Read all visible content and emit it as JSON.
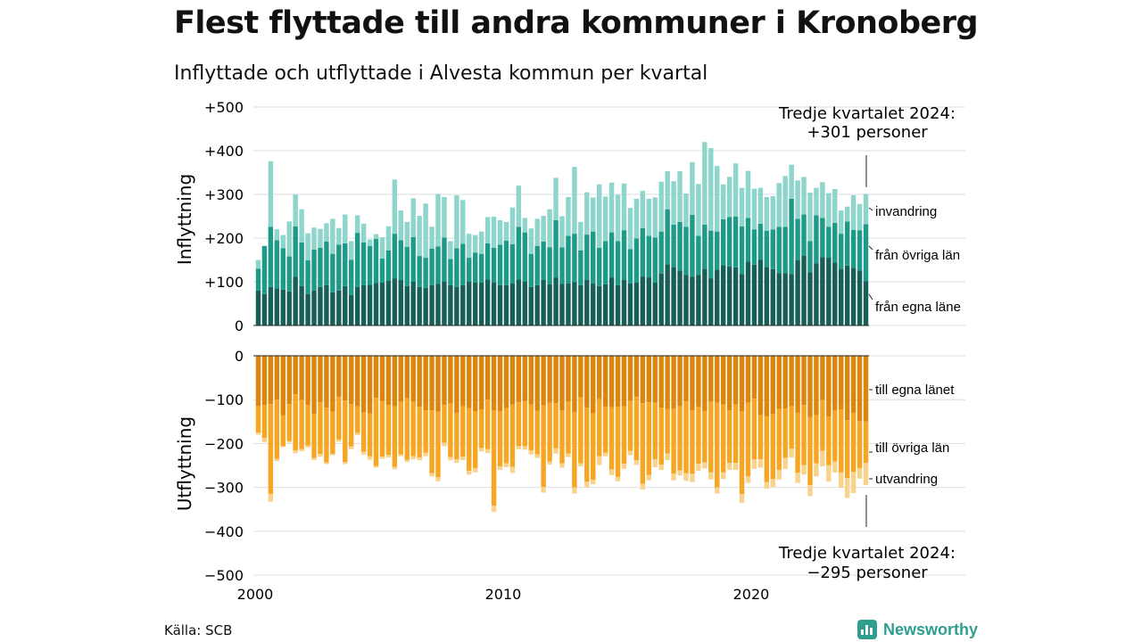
{
  "title": "Flest flyttade till andra kommuner i Kronoberg",
  "subtitle": "Inflyttade och utflyttade i Alvesta kommun per kvartal",
  "source": "Källa: SCB",
  "brand": "Newsworthy",
  "colors": {
    "in_egna": "#175f57",
    "in_ovriga": "#1e9a89",
    "in_invandring": "#8ed5cc",
    "out_egna": "#dd860d",
    "out_ovriga": "#f7a623",
    "out_utvandring": "#f8d38d",
    "grid": "#dddddd",
    "brand": "#2f9e8e"
  },
  "chart_data": [
    {
      "type": "bar",
      "stacked": true,
      "ylabel": "Inflyttning",
      "ylim": [
        0,
        500
      ],
      "yticks": [
        "0",
        "+100",
        "+200",
        "+300",
        "+400",
        "+500"
      ],
      "xticks": [
        "2000",
        "2010",
        "2020"
      ],
      "grid": true,
      "x_start": "2000 Q1",
      "x_end": "2024 Q3",
      "annotation": {
        "line1": "Tredje kvartalet 2024:",
        "line2": "+301 personer"
      },
      "series": [
        {
          "name": "från egna läne",
          "color": "#175f57",
          "values": [
            80,
            72,
            88,
            85,
            82,
            78,
            112,
            90,
            72,
            80,
            88,
            92,
            76,
            80,
            90,
            70,
            88,
            92,
            93,
            97,
            98,
            102,
            108,
            104,
            90,
            100,
            88,
            86,
            92,
            95,
            100,
            92,
            88,
            92,
            100,
            98,
            98,
            105,
            98,
            92,
            92,
            96,
            105,
            100,
            88,
            92,
            104,
            94,
            110,
            95,
            96,
            99,
            92,
            104,
            96,
            90,
            94,
            110,
            92,
            104,
            96,
            98,
            112,
            110,
            98,
            119,
            140,
            134,
            126,
            116,
            112,
            116,
            130,
            108,
            128,
            138,
            135,
            133,
            118,
            146,
            139,
            150,
            134,
            129,
            120,
            120,
            118,
            149,
            160,
            122,
            142,
            156,
            155,
            144,
            130,
            137,
            132,
            126,
            101
          ]
        },
        {
          "name": "från övriga län",
          "color": "#1e9a89",
          "values": [
            50,
            110,
            138,
            110,
            95,
            80,
            115,
            100,
            77,
            94,
            90,
            100,
            88,
            105,
            98,
            80,
            124,
            98,
            89,
            101,
            55,
            70,
            102,
            91,
            90,
            102,
            71,
            69,
            84,
            86,
            101,
            60,
            89,
            95,
            55,
            69,
            66,
            83,
            80,
            93,
            102,
            90,
            121,
            113,
            76,
            90,
            88,
            85,
            131,
            84,
            109,
            111,
            80,
            104,
            119,
            88,
            99,
            103,
            101,
            114,
            79,
            101,
            111,
            95,
            103,
            96,
            126,
            97,
            111,
            110,
            141,
            89,
            101,
            109,
            87,
            105,
            113,
            116,
            109,
            100,
            81,
            83,
            83,
            91,
            106,
            106,
            172,
            95,
            94,
            71,
            110,
            90,
            71,
            91,
            80,
            101,
            87,
            92,
            131
          ]
        },
        {
          "name": "invandring",
          "color": "#8ed5cc",
          "values": [
            20,
            0,
            150,
            25,
            30,
            80,
            73,
            76,
            62,
            50,
            43,
            42,
            80,
            38,
            66,
            43,
            40,
            43,
            15,
            11,
            49,
            55,
            124,
            68,
            57,
            89,
            92,
            124,
            50,
            120,
            93,
            41,
            121,
            100,
            55,
            40,
            51,
            60,
            71,
            56,
            43,
            84,
            94,
            33,
            58,
            62,
            59,
            87,
            97,
            71,
            89,
            153,
            65,
            97,
            78,
            145,
            102,
            114,
            106,
            107,
            94,
            91,
            85,
            85,
            92,
            114,
            87,
            99,
            116,
            76,
            121,
            119,
            189,
            189,
            150,
            80,
            92,
            122,
            88,
            108,
            93,
            82,
            77,
            76,
            100,
            116,
            78,
            88,
            86,
            111,
            63,
            82,
            77,
            77,
            53,
            34,
            79,
            60,
            69
          ]
        }
      ]
    },
    {
      "type": "bar",
      "stacked": true,
      "ylabel": "Utflyttning",
      "ylim": [
        -500,
        0
      ],
      "yticks": [
        "0",
        "−100",
        "−200",
        "−300",
        "−400",
        "−500"
      ],
      "xticks": [
        "2000",
        "2010",
        "2020"
      ],
      "grid": true,
      "x_start": "2000 Q1",
      "x_end": "2024 Q3",
      "annotation": {
        "line1": "Tredje kvartalet 2024:",
        "line2": "−295 personer"
      },
      "series": [
        {
          "name": "till egna länet",
          "color": "#dd860d",
          "values": [
            -115,
            -112,
            -110,
            -100,
            -136,
            -110,
            -88,
            -101,
            -112,
            -132,
            -106,
            -118,
            -127,
            -94,
            -102,
            -110,
            -115,
            -128,
            -131,
            -96,
            -104,
            -112,
            -115,
            -105,
            -97,
            -105,
            -116,
            -124,
            -124,
            -127,
            -112,
            -109,
            -130,
            -115,
            -119,
            -126,
            -122,
            -100,
            -124,
            -126,
            -119,
            -111,
            -106,
            -104,
            -111,
            -125,
            -113,
            -107,
            -108,
            -124,
            -105,
            -128,
            -95,
            -118,
            -131,
            -99,
            -116,
            -117,
            -116,
            -115,
            -103,
            -94,
            -108,
            -106,
            -107,
            -118,
            -121,
            -120,
            -115,
            -104,
            -124,
            -117,
            -126,
            -105,
            -107,
            -111,
            -124,
            -111,
            -126,
            -107,
            -98,
            -135,
            -138,
            -133,
            -121,
            -120,
            -115,
            -130,
            -112,
            -140,
            -135,
            -101,
            -139,
            -124,
            -122,
            -147,
            -130,
            -149,
            -150
          ]
        },
        {
          "name": "till övriga län",
          "color": "#f7a623",
          "values": [
            -60,
            -75,
            -205,
            -135,
            -70,
            -84,
            -128,
            -112,
            -93,
            -101,
            -118,
            -125,
            -97,
            -97,
            -140,
            -97,
            -61,
            -91,
            -98,
            -155,
            -126,
            -114,
            -138,
            -120,
            -140,
            -124,
            -116,
            -97,
            -144,
            -150,
            -86,
            -122,
            -106,
            -115,
            -143,
            -130,
            -88,
            -113,
            -218,
            -126,
            -126,
            -142,
            -100,
            -102,
            -105,
            -100,
            -186,
            -134,
            -103,
            -121,
            -118,
            -172,
            -150,
            -169,
            -152,
            -130,
            -105,
            -142,
            -160,
            -131,
            -114,
            -144,
            -184,
            -166,
            -129,
            -130,
            -102,
            -149,
            -146,
            -164,
            -145,
            -129,
            -117,
            -161,
            -193,
            -155,
            -120,
            -133,
            -189,
            -168,
            -138,
            -101,
            -150,
            -148,
            -139,
            -113,
            -97,
            -137,
            -137,
            -155,
            -110,
            -116,
            -110,
            -117,
            -144,
            -132,
            -135,
            -107,
            -94
          ]
        },
        {
          "name": "utvandring",
          "color": "#f8d38d",
          "values": [
            -5,
            -10,
            -18,
            -5,
            -2,
            -4,
            -6,
            -5,
            -4,
            -5,
            -6,
            -4,
            -3,
            -5,
            -5,
            -6,
            -5,
            -7,
            -8,
            -4,
            -5,
            -6,
            -6,
            -4,
            -5,
            -7,
            -6,
            -8,
            -7,
            -9,
            -8,
            -7,
            -8,
            -8,
            -9,
            -10,
            -8,
            -9,
            -14,
            -8,
            -9,
            -14,
            -7,
            -8,
            -9,
            -8,
            -13,
            -7,
            -12,
            -10,
            -8,
            -14,
            -7,
            -13,
            -10,
            -20,
            -8,
            -13,
            -10,
            -12,
            -10,
            -11,
            -13,
            -12,
            -18,
            -12,
            -15,
            -15,
            -12,
            -17,
            -19,
            -16,
            -14,
            -16,
            -14,
            -15,
            -16,
            -16,
            -20,
            -15,
            -22,
            -19,
            -15,
            -18,
            -22,
            -25,
            -20,
            -23,
            -22,
            -25,
            -30,
            -35,
            -38,
            -25,
            -35,
            -45,
            -48,
            -24,
            -51
          ]
        }
      ]
    }
  ]
}
